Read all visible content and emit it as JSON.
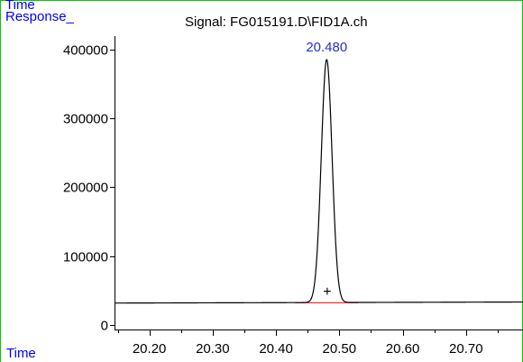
{
  "header": {
    "top_label": "Time",
    "y_axis_label": "Response_",
    "signal_title": "Signal: FG015191.D\\FID1A.ch"
  },
  "x_axis_label": "Time",
  "colors": {
    "frame": "#00cc00",
    "label_blue": "#0000ff",
    "trace": "#000000",
    "baseline": "#ff0000",
    "peak_label": "#2030d0"
  },
  "chart_data": {
    "type": "line",
    "title": "Signal: FG015191.D\\FID1A.ch",
    "xlabel": "Time",
    "ylabel": "Response_",
    "xlim": [
      20.145,
      20.79
    ],
    "ylim": [
      -7000,
      420000
    ],
    "x_ticks": [
      "20.20",
      "20.30",
      "20.40",
      "20.50",
      "20.60",
      "20.70"
    ],
    "x_tick_values": [
      20.2,
      20.3,
      20.4,
      20.5,
      20.6,
      20.7
    ],
    "y_ticks": [
      "0",
      "100000",
      "200000",
      "300000",
      "400000"
    ],
    "y_tick_values": [
      0,
      100000,
      200000,
      300000,
      400000
    ],
    "grid": false,
    "series": [
      {
        "baseline_start": 31500,
        "baseline_end": 33000,
        "peaks": [
          {
            "label": "20.480",
            "rt": 20.48,
            "height": 386000,
            "sigma": 0.0085
          }
        ]
      }
    ],
    "integration_baseline": {
      "x": [
        20.43,
        20.53
      ],
      "y": [
        32000,
        32000
      ]
    },
    "marker": {
      "symbol": "+",
      "x": 20.481,
      "y": 48000
    }
  }
}
